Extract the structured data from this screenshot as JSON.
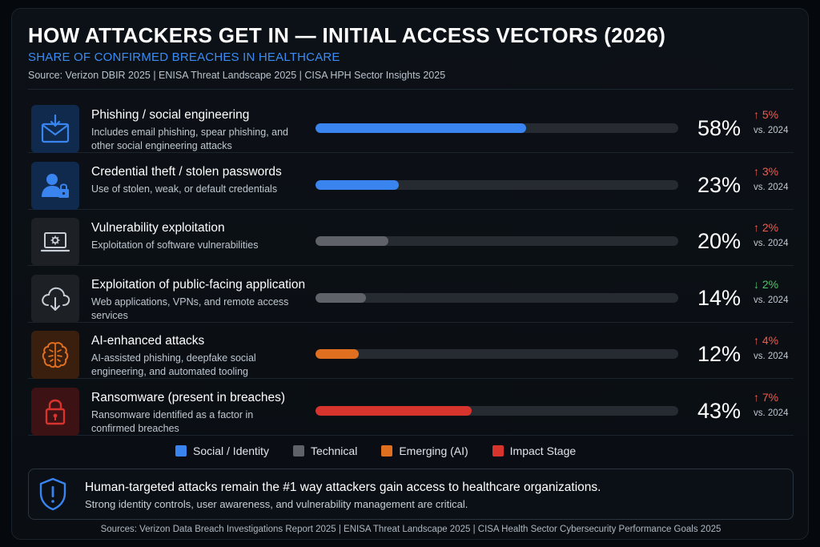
{
  "header": {
    "title": "HOW ATTACKERS GET IN — INITIAL ACCESS VECTORS (2026)",
    "subtitle": "SHARE OF CONFIRMED BREACHES IN HEALTHCARE",
    "sources": "Source: Verizon DBIR 2025  |  ENISA Threat Landscape 2025  |  CISA HPH Sector Insights 2025"
  },
  "colors": {
    "social": "#3a84f0",
    "technical": "#5f6369",
    "emerging": "#e07020",
    "impact": "#d8342e"
  },
  "chart_data": {
    "type": "bar",
    "title": "HOW ATTACKERS GET IN — INITIAL ACCESS VECTORS (2026)",
    "subtitle": "SHARE OF CONFIRMED BREACHES IN HEALTHCARE",
    "xlim": [
      0,
      100
    ],
    "unit": "%",
    "items": [
      {
        "label": "Phishing / social engineering",
        "desc": "Includes email phishing, spear phishing, and other social engineering attacks",
        "value": 58,
        "value_text": "58%",
        "change": 5,
        "change_text": "↑ 5%",
        "direction": "up",
        "vs": "vs. 2024",
        "category": "social",
        "icon": "envelope-hook-icon"
      },
      {
        "label": "Credential theft / stolen passwords",
        "desc": "Use of stolen, weak, or default credentials",
        "value": 23,
        "value_text": "23%",
        "change": 3,
        "change_text": "↑ 3%",
        "direction": "up",
        "vs": "vs. 2024",
        "category": "social",
        "icon": "user-lock-icon"
      },
      {
        "label": "Vulnerability exploitation",
        "desc": "Exploitation of software vulnerabilities",
        "value": 20,
        "value_text": "20%",
        "change": 2,
        "change_text": "↑ 2%",
        "direction": "up",
        "vs": "vs. 2024",
        "category": "technical",
        "icon": "laptop-gear-icon"
      },
      {
        "label": "Exploitation of public-facing application",
        "desc": "Web applications, VPNs, and remote access services",
        "value": 14,
        "value_text": "14%",
        "change": -2,
        "change_text": "↓ 2%",
        "direction": "down",
        "vs": "vs. 2024",
        "category": "technical",
        "icon": "cloud-download-icon"
      },
      {
        "label": "AI-enhanced attacks",
        "desc": "AI-assisted phishing, deepfake social engineering, and automated tooling",
        "value": 12,
        "value_text": "12%",
        "change": 4,
        "change_text": "↑ 4%",
        "direction": "up",
        "vs": "vs. 2024",
        "category": "emerging",
        "icon": "brain-icon"
      },
      {
        "label": "Ransomware (present in breaches)",
        "desc": "Ransomware identified as a factor in confirmed breaches",
        "value": 43,
        "value_text": "43%",
        "change": 7,
        "change_text": "↑ 7%",
        "direction": "up",
        "vs": "vs. 2024",
        "category": "impact",
        "icon": "padlock-icon"
      }
    ],
    "legend": [
      {
        "label": "Social / Identity",
        "category": "social"
      },
      {
        "label": "Technical",
        "category": "technical"
      },
      {
        "label": "Emerging (AI)",
        "category": "emerging"
      },
      {
        "label": "Impact Stage",
        "category": "impact"
      }
    ],
    "legend_position": "bottom"
  },
  "callout": {
    "headline": "Human-targeted attacks remain the #1 way attackers gain access to healthcare organizations.",
    "subline": "Strong identity controls, user awareness, and vulnerability management are critical.",
    "icon": "shield-alert-icon"
  },
  "footer": "Sources: Verizon Data Breach Investigations Report 2025  |  ENISA Threat Landscape 2025  |  CISA Health Sector Cybersecurity Performance Goals 2025"
}
